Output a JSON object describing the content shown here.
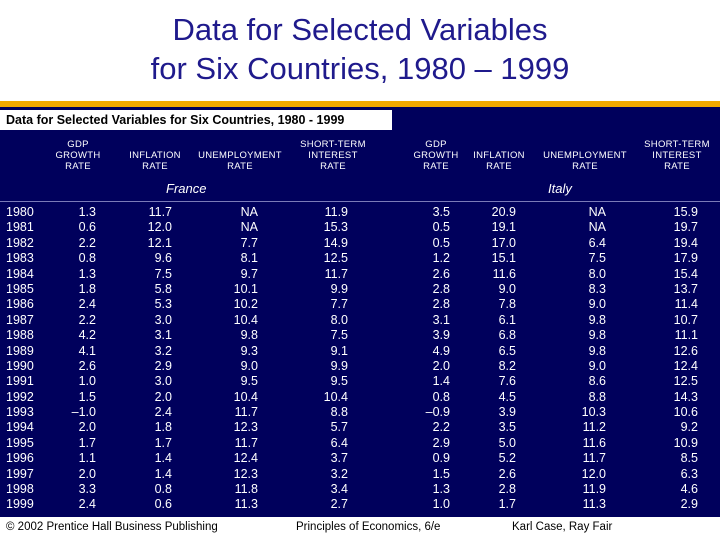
{
  "slide": {
    "title_line1": "Data for Selected Variables",
    "title_line2": "for Six Countries, 1980 – 1999"
  },
  "table": {
    "caption": "Data for Selected Variables for Six Countries, 1980 - 1999",
    "headers": [
      [
        "GDP",
        "GROWTH",
        "RATE"
      ],
      [
        "INFLATION",
        "RATE"
      ],
      [
        "UNEMPLOYMENT",
        "RATE"
      ],
      [
        "SHORT-TERM",
        "INTEREST",
        "RATE"
      ]
    ],
    "countries": [
      "France",
      "Italy"
    ],
    "years": [
      "1980",
      "1981",
      "1982",
      "1983",
      "1984",
      "1985",
      "1986",
      "1987",
      "1988",
      "1989",
      "1990",
      "1991",
      "1992",
      "1993",
      "1994",
      "1995",
      "1996",
      "1997",
      "1998",
      "1999"
    ],
    "france": {
      "gdp": [
        "1.3",
        "0.6",
        "2.2",
        "0.8",
        "1.3",
        "1.8",
        "2.4",
        "2.2",
        "4.2",
        "4.1",
        "2.6",
        "1.0",
        "1.5",
        "–1.0",
        "2.0",
        "1.7",
        "1.1",
        "2.0",
        "3.3",
        "2.4"
      ],
      "inflation": [
        "11.7",
        "12.0",
        "12.1",
        "9.6",
        "7.5",
        "5.8",
        "5.3",
        "3.0",
        "3.1",
        "3.2",
        "2.9",
        "3.0",
        "2.0",
        "2.4",
        "1.8",
        "1.7",
        "1.4",
        "1.4",
        "0.8",
        "0.6"
      ],
      "unemployment": [
        "NA",
        "NA",
        "7.7",
        "8.1",
        "9.7",
        "10.1",
        "10.2",
        "10.4",
        "9.8",
        "9.3",
        "9.0",
        "9.5",
        "10.4",
        "11.7",
        "12.3",
        "11.7",
        "12.4",
        "12.3",
        "11.8",
        "11.3"
      ],
      "interest": [
        "11.9",
        "15.3",
        "14.9",
        "12.5",
        "11.7",
        "9.9",
        "7.7",
        "8.0",
        "7.5",
        "9.1",
        "9.9",
        "9.5",
        "10.4",
        "8.8",
        "5.7",
        "6.4",
        "3.7",
        "3.2",
        "3.4",
        "2.7"
      ]
    },
    "italy": {
      "gdp": [
        "3.5",
        "0.5",
        "0.5",
        "1.2",
        "2.6",
        "2.8",
        "2.8",
        "3.1",
        "3.9",
        "4.9",
        "2.0",
        "1.4",
        "0.8",
        "–0.9",
        "2.2",
        "2.9",
        "0.9",
        "1.5",
        "1.3",
        "1.0"
      ],
      "inflation": [
        "20.9",
        "19.1",
        "17.0",
        "15.1",
        "11.6",
        "9.0",
        "7.8",
        "6.1",
        "6.8",
        "6.5",
        "8.2",
        "7.6",
        "4.5",
        "3.9",
        "3.5",
        "5.0",
        "5.2",
        "2.6",
        "2.8",
        "1.7"
      ],
      "unemployment": [
        "NA",
        "NA",
        "6.4",
        "7.5",
        "8.0",
        "8.3",
        "9.0",
        "9.8",
        "9.8",
        "9.8",
        "9.0",
        "8.6",
        "8.8",
        "10.3",
        "11.2",
        "11.6",
        "11.7",
        "12.0",
        "11.9",
        "11.3"
      ],
      "interest": [
        "15.9",
        "19.7",
        "19.4",
        "17.9",
        "15.4",
        "13.7",
        "11.4",
        "10.7",
        "11.1",
        "12.6",
        "12.4",
        "12.5",
        "14.3",
        "10.6",
        "9.2",
        "10.9",
        "8.5",
        "6.3",
        "4.6",
        "2.9"
      ]
    }
  },
  "footer": {
    "copyright": "© 2002 Prentice Hall Business Publishing",
    "book": "Principles of Economics, 6/e",
    "authors": "Karl Case, Ray Fair"
  }
}
